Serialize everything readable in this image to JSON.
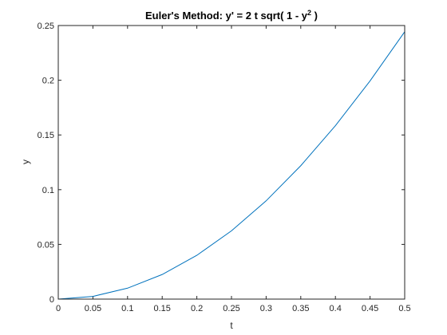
{
  "chart_data": {
    "type": "line",
    "title": "Euler's Method: y' = 2 t sqrt( 1 - y",
    "title_superscript": "2",
    "title_suffix": " )",
    "xlabel": "t",
    "ylabel": "y",
    "xlim": [
      0,
      0.5
    ],
    "ylim": [
      0,
      0.25
    ],
    "xticks": [
      0,
      0.05,
      0.1,
      0.15,
      0.2,
      0.25,
      0.3,
      0.35,
      0.4,
      0.45,
      0.5
    ],
    "xtick_labels": [
      "0",
      "0.05",
      "0.1",
      "0.15",
      "0.2",
      "0.25",
      "0.3",
      "0.35",
      "0.4",
      "0.45",
      "0.5"
    ],
    "yticks": [
      0,
      0.05,
      0.1,
      0.15,
      0.2,
      0.25
    ],
    "ytick_labels": [
      "0",
      "0.05",
      "0.1",
      "0.15",
      "0.2",
      "0.25"
    ],
    "grid": false,
    "box": true,
    "series": [
      {
        "color": "#0072BD",
        "x": [
          0,
          0.05,
          0.1,
          0.15,
          0.2,
          0.25,
          0.3,
          0.35,
          0.4,
          0.45,
          0.5
        ],
        "y": [
          0,
          0.0025,
          0.01,
          0.0225,
          0.04,
          0.0624,
          0.0898,
          0.1219,
          0.1585,
          0.1994,
          0.2443
        ]
      }
    ]
  }
}
